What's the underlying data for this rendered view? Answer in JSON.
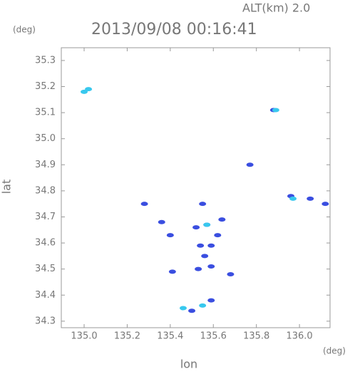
{
  "chart_data": {
    "type": "scatter",
    "title": "2013/09/08 00:16:41",
    "subtitle": "ALT(km) 2.0",
    "x_label": "lon",
    "y_label": "lat",
    "x_unit": "(deg)",
    "y_unit": "(deg)",
    "xlim": [
      134.894,
      136.142
    ],
    "ylim": [
      34.275,
      35.349
    ],
    "xticks": [
      {
        "value": 135.0,
        "label": "135.0"
      },
      135.2,
      135.4,
      135.6,
      135.8,
      {
        "value": 136.0,
        "label": "136.0"
      }
    ],
    "yticks": [
      34.3,
      34.4,
      34.5,
      34.6,
      34.7,
      34.8,
      34.9,
      {
        "value": 35.0,
        "label": "35.0"
      },
      35.1,
      35.2,
      35.3
    ],
    "series": [
      {
        "color": "#3a4ee0",
        "x": [
          135.88,
          135.77,
          135.96,
          136.05,
          136.12,
          135.28,
          135.55,
          135.36,
          135.4,
          135.52,
          135.57,
          135.64,
          135.54,
          135.59,
          135.62,
          135.56,
          135.59,
          135.53,
          135.41,
          135.68,
          135.59,
          135.5
        ],
        "values": [
          35.11,
          34.9,
          34.78,
          34.77,
          34.75,
          34.75,
          34.75,
          34.68,
          34.63,
          34.66,
          34.67,
          34.69,
          34.59,
          34.59,
          34.63,
          34.55,
          34.51,
          34.5,
          34.49,
          34.48,
          34.38,
          34.34
        ]
      },
      {
        "color": "#38c8ee",
        "x": [
          135.02,
          135.0,
          135.89,
          135.97,
          135.46,
          135.55,
          135.57
        ],
        "values": [
          35.19,
          35.18,
          35.11,
          34.77,
          34.35,
          34.36,
          34.67
        ]
      }
    ]
  }
}
